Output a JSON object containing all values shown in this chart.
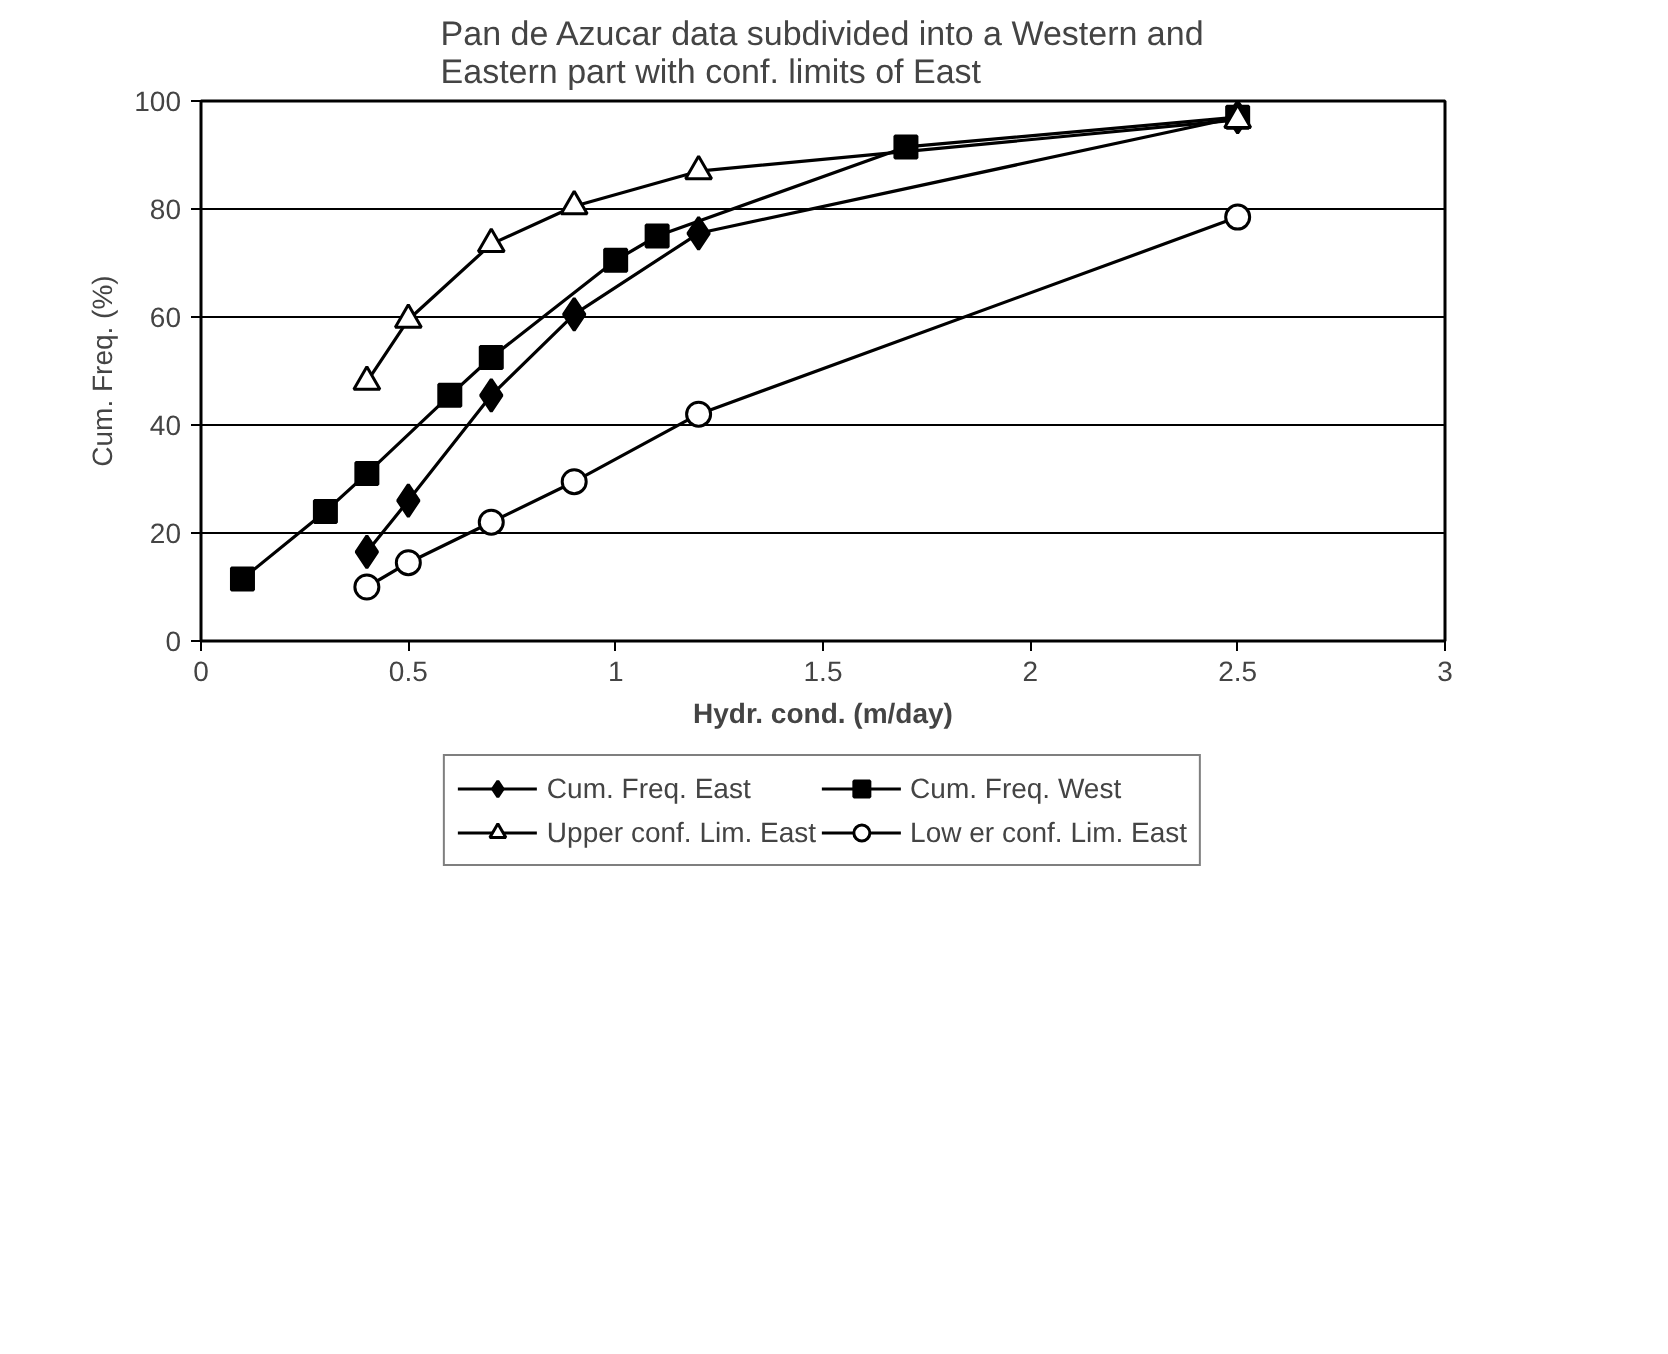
{
  "chart_data": {
    "type": "line",
    "title": "Pan de Azucar data subdivided into a Western and\nEastern part with conf. limits of East",
    "xlabel": "Hydr. cond. (m/day)",
    "ylabel": "Cum. Freq. (%)",
    "xlim": [
      0,
      3
    ],
    "xticks": [
      0,
      0.5,
      1,
      1.5,
      2,
      2.5,
      3
    ],
    "ylim": [
      0,
      100
    ],
    "yticks": [
      0,
      20,
      40,
      60,
      80,
      100
    ],
    "grid": "y",
    "legend": "bottom",
    "series": [
      {
        "name": "Cum. Freq. East",
        "color": "#000000",
        "marker": "diamond",
        "x": [
          0.4,
          0.5,
          0.7,
          0.9,
          1.2,
          2.5
        ],
        "values": [
          16.5,
          26,
          45.5,
          60.5,
          75.5,
          97
        ]
      },
      {
        "name": "Cum. Freq. West",
        "color": "#000000",
        "marker": "square",
        "x": [
          0.1,
          0.3,
          0.4,
          0.6,
          0.7,
          1.0,
          1.1,
          1.7,
          2.5
        ],
        "values": [
          11.5,
          24,
          31,
          45.5,
          52.5,
          70.5,
          75,
          91.5,
          97
        ]
      },
      {
        "name": "Upper conf. Lim. East",
        "color": "#000000",
        "marker": "triangle",
        "x": [
          0.4,
          0.5,
          0.7,
          0.9,
          1.2,
          2.5
        ],
        "values": [
          48,
          59.5,
          73.5,
          80.5,
          87,
          96.5
        ]
      },
      {
        "name": "Low er conf. Lim. East",
        "color": "#000000",
        "marker": "circle",
        "x": [
          0.4,
          0.5,
          0.7,
          0.9,
          1.2,
          2.5
        ],
        "values": [
          10,
          14.5,
          22,
          29.5,
          42,
          78.5
        ]
      }
    ]
  }
}
